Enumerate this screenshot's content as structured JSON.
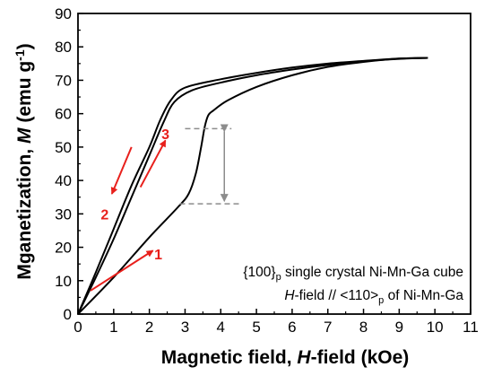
{
  "chart_data": {
    "type": "line",
    "xlabel": {
      "prefix": "Magnetic field, ",
      "italic": "H",
      "suffix": "-field (kOe)"
    },
    "ylabel": {
      "prefix": "Mganetization, ",
      "italic": "M",
      "suffix": " (emu g",
      "sup": "-1",
      "close": ")"
    },
    "xlim": [
      0,
      11
    ],
    "ylim": [
      0,
      90
    ],
    "xticks": [
      "0",
      "1",
      "2",
      "3",
      "4",
      "5",
      "6",
      "7",
      "8",
      "9",
      "10",
      "11"
    ],
    "yticks": [
      "0",
      "10",
      "20",
      "30",
      "40",
      "50",
      "60",
      "70",
      "80",
      "90"
    ],
    "series": [
      {
        "x": [
          0,
          1,
          2,
          2.8,
          3.1,
          3.3,
          3.45,
          3.55,
          3.65,
          3.8,
          4.2,
          5,
          6,
          7,
          8,
          9,
          9.8
        ],
        "y": [
          0,
          11,
          23,
          32,
          36,
          42,
          50,
          56,
          59.5,
          61,
          64,
          68,
          71.5,
          74,
          75.5,
          76.5,
          76.7
        ]
      },
      {
        "x": [
          9.8,
          9,
          8,
          7,
          6,
          5,
          4,
          3,
          2.6,
          2.3,
          2,
          1.5,
          1,
          0.5,
          0
        ],
        "y": [
          76.7,
          76.5,
          75.8,
          75,
          73.8,
          72.2,
          70.3,
          67.8,
          64,
          58,
          50,
          38.5,
          25.5,
          12.5,
          0
        ]
      },
      {
        "x": [
          0,
          0.5,
          1,
          1.5,
          2,
          2.4,
          2.7,
          3.2,
          4,
          5,
          6,
          7,
          8,
          9,
          9.8
        ],
        "y": [
          0,
          11,
          22.5,
          35,
          47.5,
          57.5,
          63.5,
          67,
          69.3,
          71.5,
          73.2,
          74.6,
          75.7,
          76.4,
          76.7
        ]
      }
    ],
    "annotations": {
      "line1": {
        "prefix": "{100}",
        "sub": "p",
        "suffix": " single crystal Ni-Mn-Ga cube"
      },
      "line2": {
        "italic": "H",
        "prefix": "-field // <110>",
        "sub": "p",
        "suffix": " of Ni-Mn-Ga"
      },
      "markers": [
        "1",
        "2",
        "3"
      ],
      "hlines_y": [
        55.5,
        33
      ],
      "colors": {
        "curve": "#000000",
        "arrow": "#e8201c",
        "label": "#e8201c",
        "guide": "#8c8c8c",
        "double_arrow": "#8c8c8c"
      }
    }
  }
}
